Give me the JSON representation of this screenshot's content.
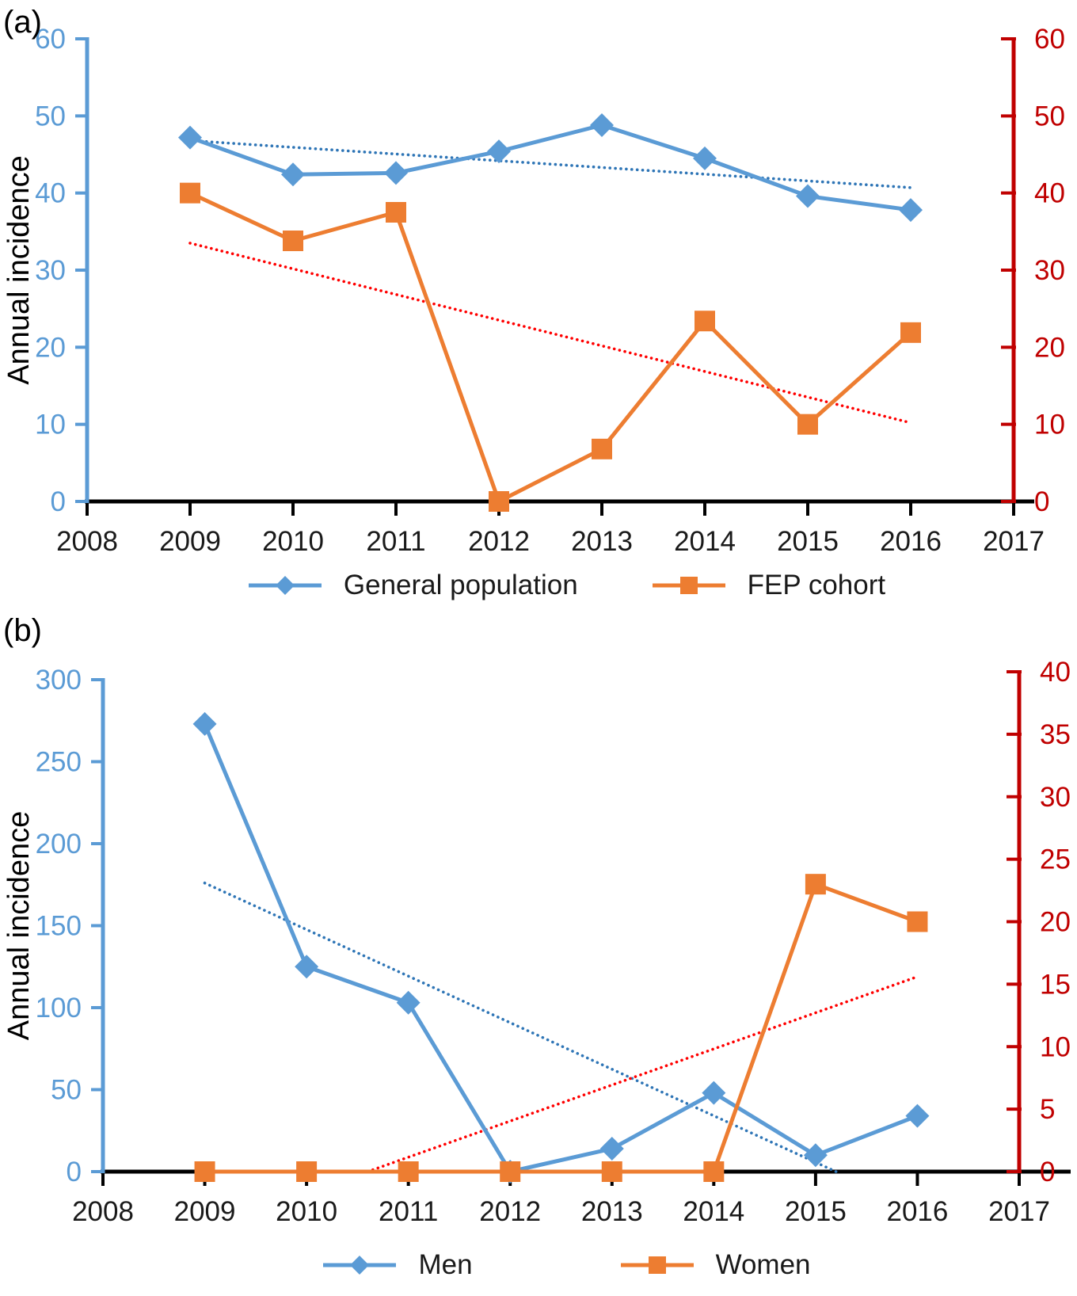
{
  "chart_data": [
    {
      "id": "a",
      "type": "line",
      "panel_label": "(a)",
      "ylabel": "Annual incidence",
      "axes": {
        "x": {
          "range": [
            2008,
            2017
          ],
          "ticks": [
            2008,
            2009,
            2010,
            2011,
            2012,
            2013,
            2014,
            2015,
            2016,
            2017
          ],
          "color": "#000000"
        },
        "left": {
          "range": [
            0,
            60
          ],
          "ticks": [
            0,
            10,
            20,
            30,
            40,
            50,
            60
          ],
          "color": "#5B9BD5"
        },
        "right": {
          "range": [
            0,
            60
          ],
          "ticks": [
            0,
            10,
            20,
            30,
            40,
            50,
            60
          ],
          "color": "#C00000"
        }
      },
      "series": [
        {
          "name": "General population",
          "axis": "left",
          "marker": "diamond",
          "color": "#5B9BD5",
          "x": [
            2009,
            2010,
            2011,
            2012,
            2013,
            2014,
            2015,
            2016
          ],
          "values": [
            47.2,
            42.4,
            42.6,
            45.4,
            48.8,
            44.5,
            39.6,
            37.8
          ]
        },
        {
          "name": "FEP cohort",
          "axis": "right",
          "marker": "square",
          "color": "#ED7D31",
          "x": [
            2009,
            2010,
            2011,
            2012,
            2013,
            2014,
            2015,
            2016
          ],
          "values": [
            40.0,
            33.8,
            37.5,
            0,
            6.8,
            23.4,
            10.0,
            21.9
          ]
        }
      ],
      "trendlines": [
        {
          "for": "General population",
          "style": "dotted",
          "color": "#2E75B6",
          "axis": "left",
          "x_start": 2009,
          "y_start": 46.8,
          "x_end": 2016,
          "y_end": 40.7
        },
        {
          "for": "FEP cohort",
          "style": "dotted",
          "color": "#FF0000",
          "axis": "right",
          "x_start": 2009,
          "y_start": 33.5,
          "x_end": 2016,
          "y_end": 10.2
        }
      ],
      "legend_position": "bottom-center"
    },
    {
      "id": "b",
      "type": "line",
      "panel_label": "(b)",
      "ylabel": "Annual incidence",
      "axes": {
        "x": {
          "range": [
            2008,
            2017
          ],
          "ticks": [
            2008,
            2009,
            2010,
            2011,
            2012,
            2013,
            2014,
            2015,
            2016,
            2017
          ],
          "color": "#000000"
        },
        "left": {
          "range": [
            0,
            300
          ],
          "ticks": [
            0,
            50,
            100,
            150,
            200,
            250,
            300
          ],
          "color": "#5B9BD5"
        },
        "right": {
          "range": [
            0,
            40
          ],
          "ticks": [
            0,
            5,
            10,
            15,
            20,
            25,
            30,
            35,
            40
          ],
          "color": "#C00000"
        }
      },
      "series": [
        {
          "name": "Men",
          "axis": "left",
          "marker": "diamond",
          "color": "#5B9BD5",
          "x": [
            2009,
            2010,
            2011,
            2012,
            2013,
            2014,
            2015,
            2016
          ],
          "values": [
            273,
            125,
            103,
            0,
            14,
            48,
            10,
            34
          ]
        },
        {
          "name": "Women",
          "axis": "right",
          "marker": "square",
          "color": "#ED7D31",
          "x": [
            2009,
            2010,
            2011,
            2012,
            2013,
            2014,
            2015,
            2016
          ],
          "values": [
            0,
            0,
            0,
            0,
            0,
            0,
            23,
            20
          ]
        }
      ],
      "trendlines": [
        {
          "for": "Men",
          "style": "dotted",
          "color": "#2E75B6",
          "axis": "left",
          "x_start": 2009,
          "y_start": 176,
          "x_end": 2015.2,
          "y_end": 0
        },
        {
          "for": "Women",
          "style": "dotted",
          "color": "#FF0000",
          "axis": "right",
          "x_start": 2010.6,
          "y_start": 0,
          "x_end": 2016,
          "y_end": 15.6
        }
      ],
      "legend_position": "bottom-center"
    }
  ]
}
